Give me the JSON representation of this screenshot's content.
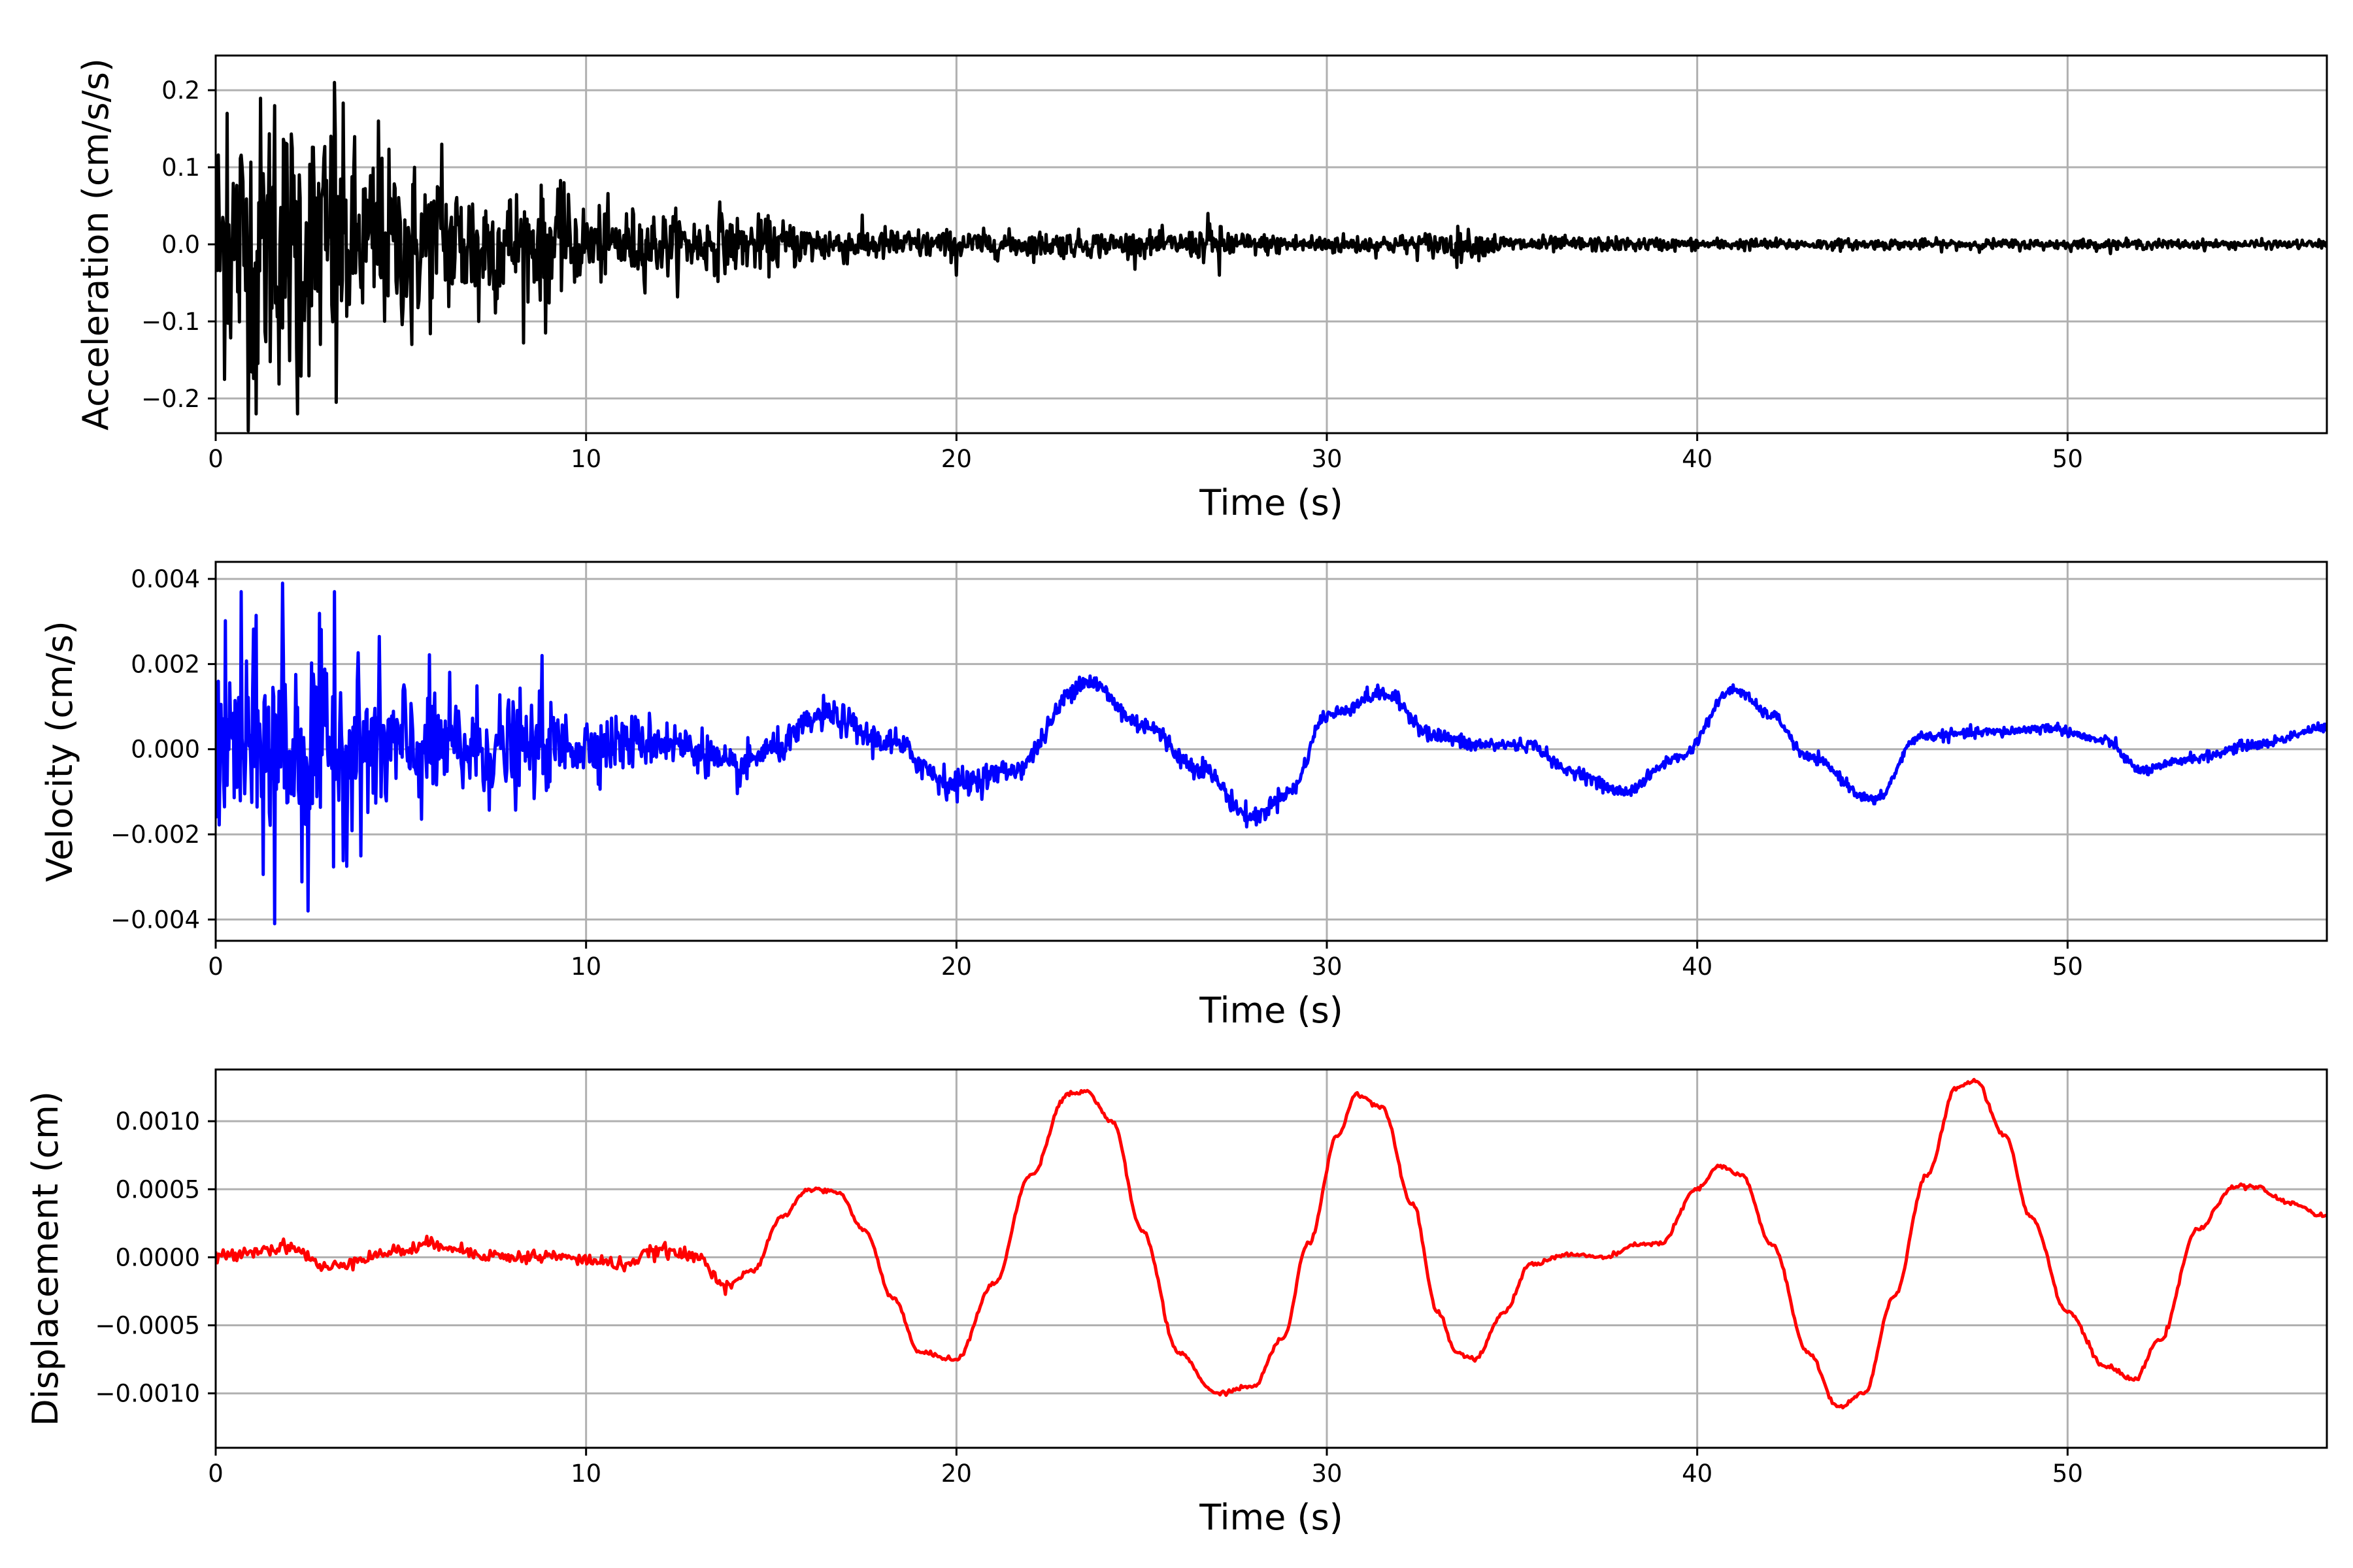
{
  "chart_data": [
    {
      "type": "line",
      "xlabel": "Time (s)",
      "ylabel": "Acceleration (cm/s/s)",
      "xlim": [
        0,
        57
      ],
      "ylim": [
        -0.245,
        0.245
      ],
      "xticks": [
        0,
        10,
        20,
        30,
        40,
        50
      ],
      "xtick_labels": [
        "0",
        "10",
        "20",
        "30",
        "40",
        "50"
      ],
      "yticks": [
        -0.2,
        -0.1,
        0.0,
        0.1,
        0.2
      ],
      "ytick_labels": [
        "−0.2",
        "−0.1",
        "0.0",
        "0.1",
        "0.2"
      ],
      "grid": true,
      "color": "#000000",
      "series": [
        {
          "x": [
            0,
            0.5,
            1,
            1.5,
            2,
            2.5,
            3,
            3.5,
            4,
            5,
            6,
            7,
            8,
            9,
            10,
            11,
            12,
            13,
            14,
            15,
            16,
            17,
            18,
            19,
            20,
            22,
            24,
            26,
            27,
            28,
            30,
            32,
            33.5,
            35,
            38,
            40,
            45,
            50,
            55,
            57
          ],
          "y_env": [
            0.15,
            0.16,
            0.17,
            0.17,
            0.16,
            0.15,
            0.16,
            0.13,
            0.11,
            0.1,
            0.09,
            0.08,
            0.07,
            0.06,
            0.045,
            0.042,
            0.038,
            0.035,
            0.032,
            0.03,
            0.025,
            0.022,
            0.02,
            0.018,
            0.016,
            0.015,
            0.015,
            0.014,
            0.022,
            0.012,
            0.012,
            0.011,
            0.018,
            0.01,
            0.008,
            0.007,
            0.006,
            0.006,
            0.005,
            0.005
          ],
          "y_peaks": [
            [
              0.3,
              0.17
            ],
            [
              1.1,
              -0.22
            ],
            [
              1.6,
              0.18
            ],
            [
              2.2,
              -0.22
            ],
            [
              3.2,
              0.21
            ],
            [
              3.25,
              -0.205
            ],
            [
              4.4,
              0.16
            ],
            [
              6.1,
              0.13
            ],
            [
              5.3,
              -0.13
            ],
            [
              7.1,
              -0.1
            ],
            [
              8.9,
              -0.115
            ],
            [
              9.4,
              0.08
            ],
            [
              13.6,
              0.055
            ],
            [
              20,
              -0.04
            ],
            [
              26.8,
              0.04
            ],
            [
              27.1,
              -0.04
            ],
            [
              33.5,
              -0.03
            ]
          ]
        }
      ]
    },
    {
      "type": "line",
      "xlabel": "Time (s)",
      "ylabel": "Velocity (cm/s)",
      "xlim": [
        0,
        57
      ],
      "ylim": [
        -0.0045,
        0.0044
      ],
      "xticks": [
        0,
        10,
        20,
        30,
        40,
        50
      ],
      "xtick_labels": [
        "0",
        "10",
        "20",
        "30",
        "40",
        "50"
      ],
      "yticks": [
        -0.004,
        -0.002,
        0.0,
        0.002,
        0.004
      ],
      "ytick_labels": [
        "−0.004",
        "−0.002",
        "0.000",
        "0.002",
        "0.004"
      ],
      "grid": true,
      "color": "#0000ff",
      "series": [
        {
          "x": [
            0,
            2,
            4,
            6,
            8,
            10,
            12,
            13,
            14,
            15,
            16.5,
            18,
            20,
            21.5,
            23.5,
            25,
            26.5,
            28,
            29,
            30,
            31.5,
            33,
            34,
            35.5,
            36.5,
            38,
            39.5,
            41,
            42,
            43,
            44.8,
            46,
            48,
            49.5,
            51,
            52,
            53.5,
            55,
            57
          ],
          "y": [
            0,
            0,
            0,
            0,
            0,
            0.0001,
            0.0002,
            0,
            -0.0005,
            0,
            0.0008,
            0.0002,
            -0.0008,
            -0.0005,
            0.0016,
            0.0006,
            -0.0004,
            -0.0016,
            -0.001,
            0.0008,
            0.0013,
            0.0003,
            0.0001,
            0.0001,
            -0.0005,
            -0.001,
            -0.0002,
            0.0014,
            0.0008,
            -0.0002,
            -0.0012,
            0.0003,
            0.0004,
            0.0005,
            0.0002,
            -0.0005,
            -0.0002,
            0.0001,
            0.0005
          ],
          "noise_env": [
            0.0018,
            0.0022,
            0.0016,
            0.0012,
            0.001,
            0.0006,
            0.0005,
            0.0004,
            0.0004,
            0.0003,
            0.0003,
            0.0003,
            0.0003,
            0.0002,
            0.0002,
            0.0002,
            0.0002,
            0.0002,
            0.00015,
            0.00015,
            0.00015,
            0.00015,
            0.00015,
            0.00012,
            0.00012,
            0.00012,
            0.0001,
            0.0001,
            0.0001,
            0.0001,
            0.0001,
            0.0001,
            0.0001,
            0.0001,
            0.0001,
            0.0001,
            0.0001,
            0.0001,
            0.0001
          ],
          "y_peaks": [
            [
              1.6,
              -0.0041
            ],
            [
              1.8,
              0.0039
            ],
            [
              2.5,
              -0.0038
            ],
            [
              3.2,
              0.0037
            ],
            [
              0.7,
              0.0037
            ],
            [
              8.8,
              0.0022
            ]
          ]
        }
      ]
    },
    {
      "type": "line",
      "xlabel": "Time (s)",
      "ylabel": "Displacement (cm)",
      "xlim": [
        0,
        57
      ],
      "ylim": [
        -0.0014,
        0.00138
      ],
      "xticks": [
        0,
        10,
        20,
        30,
        40,
        50
      ],
      "xtick_labels": [
        "0",
        "10",
        "20",
        "30",
        "40",
        "50"
      ],
      "yticks": [
        -0.001,
        -0.0005,
        0.0,
        0.0005,
        0.001
      ],
      "ytick_labels": [
        "−0.0010",
        "−0.0005",
        "0.0000",
        "0.0005",
        "0.0010"
      ],
      "grid": true,
      "color": "#ff0000",
      "series": [
        {
          "x": [
            0,
            1,
            2,
            3,
            4,
            5,
            6,
            7,
            8,
            9,
            10,
            11,
            12,
            13,
            13.8,
            14.5,
            15.3,
            16,
            16.8,
            17.5,
            18.3,
            19,
            20,
            21,
            22,
            23,
            23.5,
            24.2,
            25,
            26,
            27,
            28,
            28.8,
            29.5,
            30.3,
            30.8,
            31.5,
            32.3,
            33,
            33.5,
            34,
            34.8,
            35.5,
            36.5,
            37.5,
            38.5,
            39,
            40,
            40.6,
            41.2,
            42,
            43,
            43.8,
            44.5,
            45.3,
            46.2,
            47,
            47.5,
            48.3,
            49,
            50,
            51,
            51.8,
            52.5,
            53.5,
            54.5,
            55,
            56,
            57
          ],
          "y": [
            0,
            5e-05,
            8e-05,
            -8e-05,
            0,
            5e-05,
            0.0001,
            3e-05,
            0,
            1e-05,
            -2e-05,
            -5e-05,
            5e-05,
            0,
            -0.0002,
            -0.0001,
            0.0003,
            0.0005,
            0.00048,
            0.0002,
            -0.0003,
            -0.0007,
            -0.00075,
            -0.0002,
            0.0006,
            0.0012,
            0.00122,
            0.001,
            0.0002,
            -0.0007,
            -0.001,
            -0.00095,
            -0.0006,
            0.0001,
            0.0009,
            0.0012,
            0.0011,
            0.0004,
            -0.0004,
            -0.0007,
            -0.00075,
            -0.0004,
            -5e-05,
            2e-05,
            0,
            0.0001,
            0.0001,
            0.0005,
            0.00067,
            0.0006,
            0.0001,
            -0.0007,
            -0.0011,
            -0.001,
            -0.0003,
            0.0006,
            0.00125,
            0.0013,
            0.0009,
            0.0003,
            -0.0004,
            -0.0008,
            -0.0009,
            -0.0006,
            0.0002,
            0.00052,
            0.00052,
            0.0004,
            0.0003
          ]
        }
      ]
    }
  ]
}
